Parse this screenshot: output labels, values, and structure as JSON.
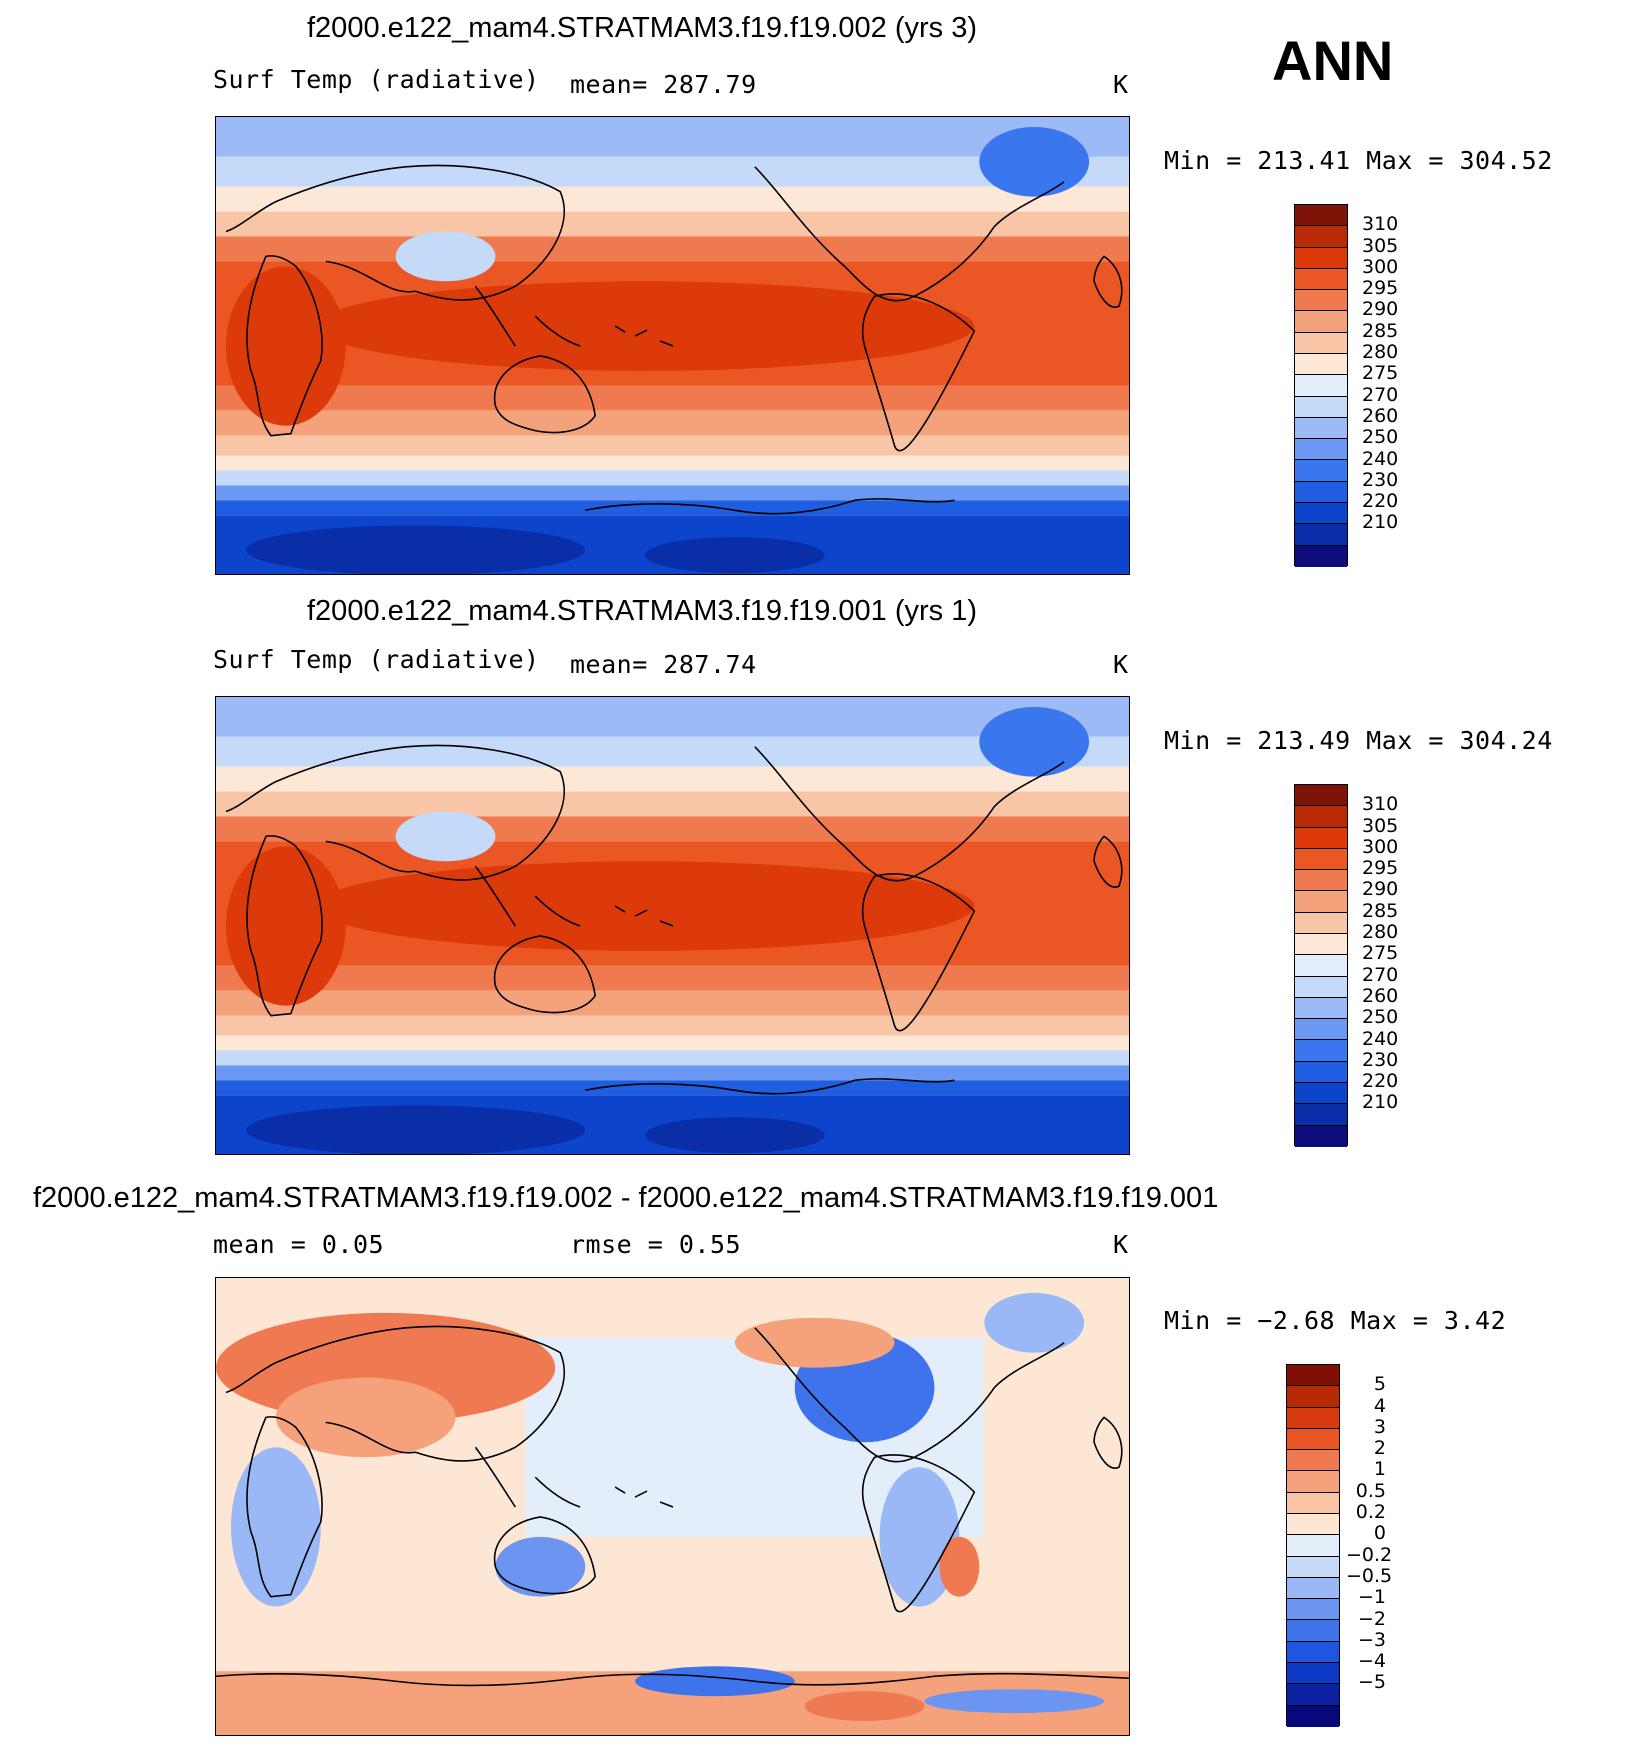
{
  "season": "ANN",
  "colors": {
    "abs": [
      "#0c0c7a",
      "#0a2ea8",
      "#0d44cc",
      "#1f5ee0",
      "#3a77ee",
      "#6a98f2",
      "#9bbaf6",
      "#c5d9f8",
      "#e3eefb",
      "#fde7d6",
      "#f8c6a6",
      "#f4a27c",
      "#f07a50",
      "#ea5724",
      "#dd3a0c",
      "#b92a06",
      "#7e1308"
    ],
    "diff": [
      "#07087a",
      "#0a22a0",
      "#0d39c6",
      "#1e56e2",
      "#3f73ec",
      "#6b95f1",
      "#9ab8f5",
      "#c7d9f7",
      "#e4eefb",
      "#fde6d4",
      "#f8c4a4",
      "#f4a17c",
      "#ef7a52",
      "#e95427",
      "#d73a0c",
      "#b72a05",
      "#800f06"
    ]
  },
  "panels": [
    {
      "title": "f2000.e122_mam4.STRATMAM3.f19.f19.002 (yrs 3)",
      "left_label": "Surf Temp (radiative)",
      "mid_label": "mean=  287.79",
      "units": "K",
      "minmax": "Min  =  213.41  Max  =  304.52",
      "levels": [
        "310",
        "305",
        "300",
        "295",
        "290",
        "285",
        "280",
        "275",
        "270",
        "260",
        "250",
        "240",
        "230",
        "220",
        "210"
      ]
    },
    {
      "title": "f2000.e122_mam4.STRATMAM3.f19.f19.001 (yrs 1)",
      "left_label": "Surf Temp (radiative)",
      "mid_label": "mean=  287.74",
      "units": "K",
      "minmax": "Min  =  213.49  Max  =  304.24",
      "levels": [
        "310",
        "305",
        "300",
        "295",
        "290",
        "285",
        "280",
        "275",
        "270",
        "260",
        "250",
        "240",
        "230",
        "220",
        "210"
      ]
    },
    {
      "title": "f2000.e122_mam4.STRATMAM3.f19.f19.002 - f2000.e122_mam4.STRATMAM3.f19.f19.001",
      "left_label": "mean =     0.05",
      "mid_label": "rmse =     0.55",
      "units": "K",
      "minmax": "Min  =    −2.68  Max  =      3.42",
      "levels": [
        "5",
        "4",
        "3",
        "2",
        "1",
        "0.5",
        "0.2",
        "0",
        "−0.2",
        "−0.5",
        "−1",
        "−2",
        "−3",
        "−4",
        "−5"
      ]
    }
  ],
  "chart_data": [
    {
      "type": "heatmap",
      "title": "f2000.e122_mam4.STRATMAM3.f19.f19.002 (yrs 3)",
      "variable": "Surf Temp (radiative)",
      "units": "K",
      "mean": 287.79,
      "min": 213.41,
      "max": 304.52,
      "contour_levels": [
        210,
        220,
        230,
        240,
        250,
        260,
        270,
        275,
        280,
        285,
        290,
        295,
        300,
        305,
        310
      ],
      "projection": "cylindrical equidistant, Pacific-centered"
    },
    {
      "type": "heatmap",
      "title": "f2000.e122_mam4.STRATMAM3.f19.f19.001 (yrs 1)",
      "variable": "Surf Temp (radiative)",
      "units": "K",
      "mean": 287.74,
      "min": 213.49,
      "max": 304.24,
      "contour_levels": [
        210,
        220,
        230,
        240,
        250,
        260,
        270,
        275,
        280,
        285,
        290,
        295,
        300,
        305,
        310
      ],
      "projection": "cylindrical equidistant, Pacific-centered"
    },
    {
      "type": "heatmap",
      "title": "f2000.e122_mam4.STRATMAM3.f19.f19.002 - f2000.e122_mam4.STRATMAM3.f19.f19.001",
      "units": "K",
      "mean": 0.05,
      "rmse": 0.55,
      "min": -2.68,
      "max": 3.42,
      "contour_levels": [
        -5,
        -4,
        -3,
        -2,
        -1,
        -0.5,
        -0.2,
        0,
        0.2,
        0.5,
        1,
        2,
        3,
        4,
        5
      ],
      "projection": "cylindrical equidistant, Pacific-centered"
    }
  ]
}
